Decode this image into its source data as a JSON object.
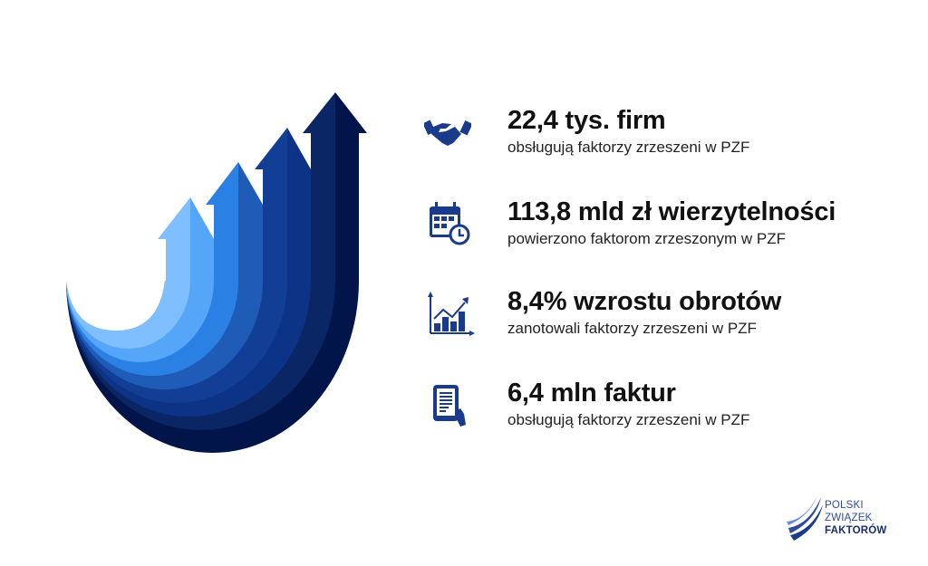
{
  "stats": [
    {
      "icon": "handshake-icon",
      "title": "22,4 tys. firm",
      "subtitle": "obsługują faktorzy zrzeszeni w PZF"
    },
    {
      "icon": "calendar-clock-icon",
      "title": "113,8 mld zł wierzytelności",
      "subtitle": "powierzono faktorom zrzeszonym w PZF"
    },
    {
      "icon": "growth-chart-icon",
      "title": "8,4% wzrostu obrotów",
      "subtitle": "zanotowali faktorzy zrzeszeni w PZF"
    },
    {
      "icon": "tablet-document-icon",
      "title": "6,4 mln faktur",
      "subtitle": "obsługują faktorzy zrzeszeni w PZF"
    }
  ],
  "logo": {
    "line1": "POLSKI",
    "line2": "ZWIĄZEK",
    "line3": "FAKTORÓW"
  },
  "colors": {
    "icon": "#1a3a8c",
    "text": "#111111",
    "logo": "#2d4aa0",
    "arrows": [
      "#7fbfff",
      "#55a5f8",
      "#2a80e3",
      "#1e5cb8",
      "#123e96",
      "#0c3386",
      "#0a2664",
      "#02154a"
    ]
  }
}
